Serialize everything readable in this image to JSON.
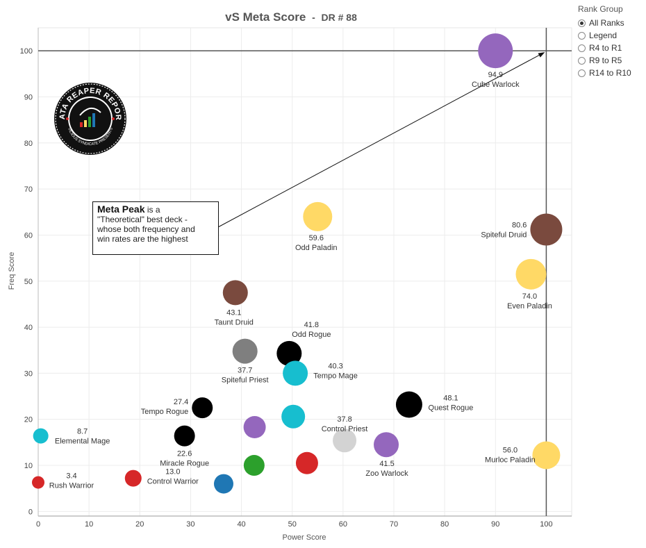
{
  "chart_data": {
    "type": "scatter",
    "title": "vS Meta Score",
    "subtitle": "DR # 88",
    "xlabel": "Power Score",
    "ylabel": "Freq Score",
    "xlim": [
      0,
      105
    ],
    "ylim": [
      -1,
      105
    ],
    "xticks": [
      0,
      10,
      20,
      30,
      40,
      50,
      60,
      70,
      80,
      90,
      100
    ],
    "yticks": [
      0,
      10,
      20,
      30,
      40,
      50,
      60,
      70,
      80,
      90,
      100
    ],
    "grid": true,
    "reference_lines": {
      "x": 100,
      "y": 100
    },
    "points": [
      {
        "name": "Cube Warlock",
        "score": "94.9",
        "x": 90,
        "y": 100,
        "color": "#9467bd",
        "size": 25
      },
      {
        "name": "Spiteful Druid",
        "score": "80.6",
        "x": 100,
        "y": 61.2,
        "color": "#7a4a3e",
        "size": 23
      },
      {
        "name": "Odd Paladin",
        "score": "59.6",
        "x": 55,
        "y": 64,
        "color": "#ffd966",
        "size": 21
      },
      {
        "name": "Even Paladin",
        "score": "74.0",
        "x": 97,
        "y": 51.5,
        "color": "#ffd966",
        "size": 22
      },
      {
        "name": "Taunt Druid",
        "score": "43.1",
        "x": 38.8,
        "y": 47.5,
        "color": "#7a4a3e",
        "size": 18
      },
      {
        "name": "Odd Rogue",
        "score": "41.8",
        "x": 49.4,
        "y": 34.3,
        "color": "#000000",
        "size": 18
      },
      {
        "name": "Spiteful Priest",
        "score": "37.7",
        "x": 40.7,
        "y": 34.8,
        "color": "#7f7f7f",
        "size": 18
      },
      {
        "name": "Tempo Mage",
        "score": "40.3",
        "x": 50.6,
        "y": 30,
        "color": "#17becf",
        "size": 18
      },
      {
        "name": "Quest Rogue",
        "score": "48.1",
        "x": 73,
        "y": 23.2,
        "color": "#000000",
        "size": 19
      },
      {
        "name": "Tempo Rogue",
        "score": "27.4",
        "x": 32.3,
        "y": 22.5,
        "color": "#000000",
        "size": 15
      },
      {
        "name": "Control Priest",
        "score": "37.8",
        "x": 60.3,
        "y": 15.4,
        "color": "#d3d3d3",
        "size": 17
      },
      {
        "name": "Zoo Warlock",
        "score": "41.5",
        "x": 68.5,
        "y": 14.5,
        "color": "#9467bd",
        "size": 18
      },
      {
        "name": "Elemental Mage",
        "score": "8.7",
        "x": 0.5,
        "y": 16.4,
        "color": "#17becf",
        "size": 11
      },
      {
        "name": "Miracle Rogue",
        "score": "22.6",
        "x": 28.8,
        "y": 16.4,
        "color": "#000000",
        "size": 15
      },
      {
        "name": "Murloc Paladin",
        "score": "56.0",
        "x": 100,
        "y": 12.2,
        "color": "#ffd966",
        "size": 20
      },
      {
        "name": "",
        "score": "",
        "x": 42.6,
        "y": 18.3,
        "color": "#9467bd",
        "size": 16
      },
      {
        "name": "",
        "score": "",
        "x": 50.2,
        "y": 20.6,
        "color": "#17becf",
        "size": 17
      },
      {
        "name": "",
        "score": "",
        "x": 42.5,
        "y": 10,
        "color": "#2ca02c",
        "size": 15
      },
      {
        "name": "",
        "score": "",
        "x": 52.9,
        "y": 10.5,
        "color": "#d62728",
        "size": 16
      },
      {
        "name": "",
        "score": "",
        "x": 36.5,
        "y": 6,
        "color": "#1f77b4",
        "size": 14
      },
      {
        "name": "Control Warrior",
        "score": "13.0",
        "x": 18.7,
        "y": 7.2,
        "color": "#d62728",
        "size": 12
      },
      {
        "name": "Rush Warrior",
        "score": "3.4",
        "x": 0,
        "y": 6.3,
        "color": "#d62728",
        "size": 9
      }
    ]
  },
  "rank_group": {
    "title": "Rank Group",
    "options": [
      {
        "label": "All Ranks",
        "selected": true
      },
      {
        "label": "Legend",
        "selected": false
      },
      {
        "label": "R4 to R1",
        "selected": false
      },
      {
        "label": "R9 to R5",
        "selected": false
      },
      {
        "label": "R14 to R10",
        "selected": false
      }
    ]
  },
  "annotation": {
    "bold": "Meta Peak",
    "text_after_bold": " is a",
    "line2": "\"Theoretical\" best deck -",
    "line3": "whose both frequency and",
    "line4": "win rates are the highest"
  },
  "logo": {
    "top_text": "DATA REAPER REPORT",
    "bottom_text": "VICIOUS SYNDICATE PRESENTS"
  }
}
